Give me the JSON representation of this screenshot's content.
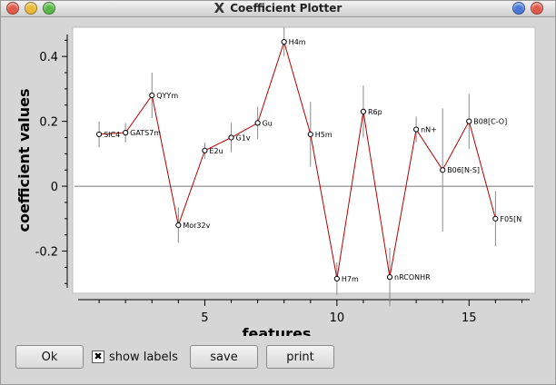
{
  "window": {
    "title": "Coefficient Plotter",
    "logo": "X"
  },
  "controls": {
    "ok_label": "Ok",
    "show_labels_label": "show labels",
    "show_labels_checked": true,
    "save_label": "save",
    "print_label": "print"
  },
  "chart_data": {
    "type": "scatter",
    "xlabel": "features",
    "ylabel": "coefficient values",
    "xlim": [
      0,
      17.5
    ],
    "ylim": [
      -0.33,
      0.49
    ],
    "xticks": [
      5,
      10,
      15
    ],
    "yticks": [
      0.4,
      0.2,
      0,
      -0.2
    ],
    "ytick_labels": [
      "0.4",
      "0.2",
      "0",
      "-0.2"
    ],
    "grid": false,
    "line_color": "#b30000",
    "errorbar_color": "#8a8a8a",
    "zero_line_color": "#777777",
    "series": [
      {
        "points": [
          {
            "x": 1,
            "y": 0.16,
            "err": 0.04,
            "label": "SIC4"
          },
          {
            "x": 2,
            "y": 0.165,
            "err": 0.03,
            "label": "GATS7m"
          },
          {
            "x": 3,
            "y": 0.28,
            "err": 0.07,
            "label": "QYYm"
          },
          {
            "x": 4,
            "y": -0.12,
            "err": 0.055,
            "label": "Mor32v"
          },
          {
            "x": 5,
            "y": 0.11,
            "err": 0.025,
            "label": "E2u"
          },
          {
            "x": 6,
            "y": 0.15,
            "err": 0.045,
            "label": "G1v"
          },
          {
            "x": 7,
            "y": 0.195,
            "err": 0.05,
            "label": "Gu"
          },
          {
            "x": 8,
            "y": 0.445,
            "err": 0.045,
            "label": "H4m"
          },
          {
            "x": 9,
            "y": 0.16,
            "err": 0.1,
            "label": "H5m"
          },
          {
            "x": 10,
            "y": -0.285,
            "err": 0.05,
            "label": "H7m"
          },
          {
            "x": 11,
            "y": 0.23,
            "err": 0.08,
            "label": "R6p"
          },
          {
            "x": 12,
            "y": -0.28,
            "err": 0.09,
            "label": "nRCONHR"
          },
          {
            "x": 13,
            "y": 0.175,
            "err": 0.04,
            "label": "nN+"
          },
          {
            "x": 14,
            "y": 0.05,
            "err": 0.19,
            "label": "B06[N-S]"
          },
          {
            "x": 15,
            "y": 0.2,
            "err": 0.085,
            "label": "B08[C-O]"
          },
          {
            "x": 16,
            "y": -0.1,
            "err": 0.085,
            "label": "F05[N"
          }
        ]
      }
    ]
  }
}
